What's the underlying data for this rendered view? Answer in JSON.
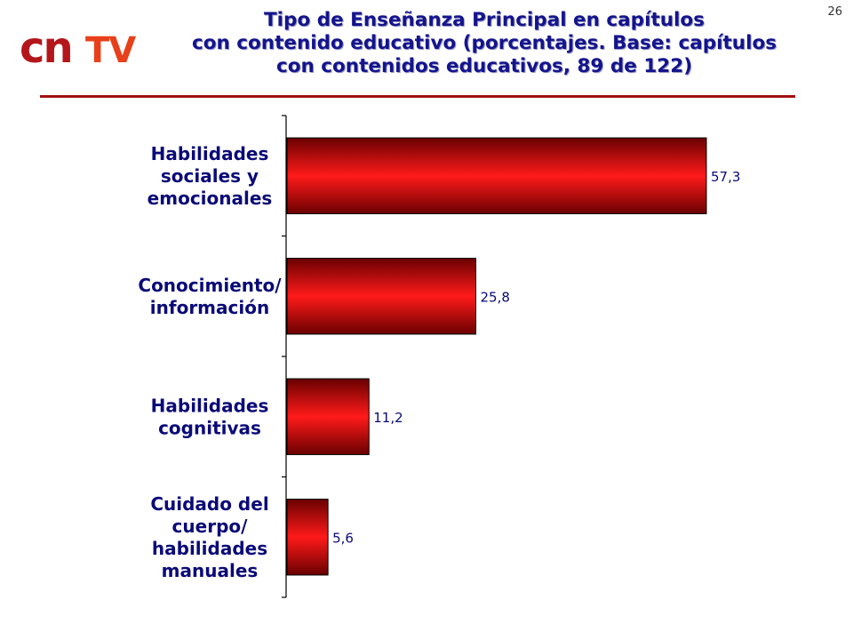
{
  "slide_number": "26",
  "logo": {
    "text_cn": "cn",
    "text_tv": "TV",
    "color_cn": "#b4161b",
    "color_tv": "#e8401a"
  },
  "title": {
    "line1": "Tipo de Enseñanza Principal en capítulos",
    "line2": "con contenido educativo (porcentajes. Base: capítulos",
    "line3": "con contenidos educativos, 89 de 122)"
  },
  "colors": {
    "title": "#14148c",
    "rule": "#a01010",
    "bar_light": "#ff1a1a",
    "bar_dark": "#6a0000",
    "label": "#0a0a78"
  },
  "chart_data": {
    "type": "bar",
    "orientation": "horizontal",
    "categories": [
      [
        "Habilidades",
        "sociales y",
        "emocionales"
      ],
      [
        "Conocimiento/",
        "información"
      ],
      [
        "Habilidades",
        "cognitivas"
      ],
      [
        "Cuidado del",
        "cuerpo/",
        "habilidades",
        "manuales"
      ]
    ],
    "values": [
      57.3,
      25.8,
      11.2,
      5.6
    ],
    "value_labels": [
      "57,3",
      "25,8",
      "11,2",
      "5,6"
    ],
    "xlim": [
      0,
      57.3
    ],
    "grid": false,
    "legend": "none"
  }
}
